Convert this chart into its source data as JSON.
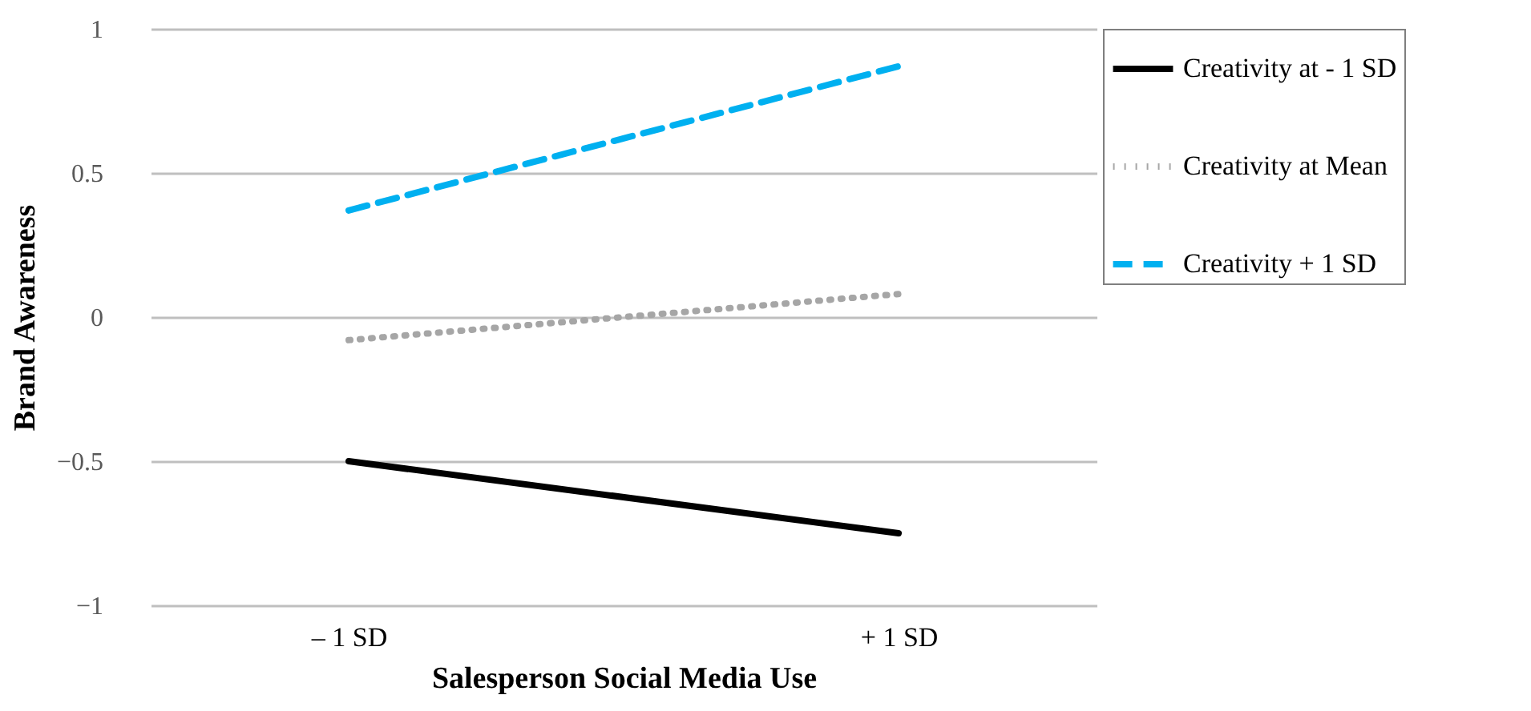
{
  "chart_data": {
    "type": "line",
    "xlabel": "Salesperson Social Media Use",
    "ylabel": "Brand Awareness",
    "categories": [
      "– 1 SD",
      "+ 1 SD"
    ],
    "series": [
      {
        "name": "Creativity at - 1 SD",
        "color": "#000000",
        "line_style": "solid",
        "values": [
          -0.5,
          -0.75
        ]
      },
      {
        "name": "Creativity at Mean",
        "color": "#a6a6a6",
        "line_style": "dotted",
        "values": [
          -0.08,
          0.08
        ]
      },
      {
        "name": "Creativity + 1 SD",
        "color": "#00b0f0",
        "line_style": "dashed",
        "values": [
          0.37,
          0.87
        ]
      }
    ],
    "ylim": [
      -1,
      1
    ],
    "yticks": [
      {
        "value": -1,
        "label": "−1"
      },
      {
        "value": -0.5,
        "label": "−0.5"
      },
      0,
      0.5,
      1
    ],
    "grid": "y",
    "legend": "right",
    "marker": "none"
  }
}
